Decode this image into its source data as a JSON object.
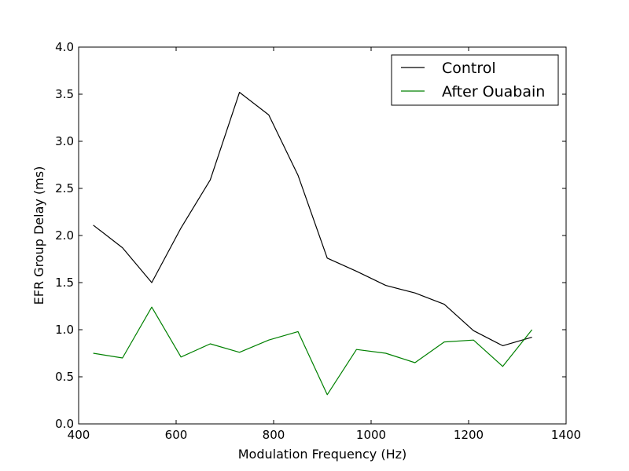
{
  "chart_data": {
    "type": "line",
    "title": "",
    "xlabel": "Modulation Frequency (Hz)",
    "ylabel": "EFR Group Delay (ms)",
    "xlim": [
      400,
      1400
    ],
    "ylim": [
      0.0,
      4.0
    ],
    "x_ticks": [
      400,
      600,
      800,
      1000,
      1200,
      1400
    ],
    "x_tick_labels": [
      "400",
      "600",
      "800",
      "1000",
      "1200",
      "1400"
    ],
    "y_ticks": [
      0.0,
      0.5,
      1.0,
      1.5,
      2.0,
      2.5,
      3.0,
      3.5,
      4.0
    ],
    "y_tick_labels": [
      "0.0",
      "0.5",
      "1.0",
      "1.5",
      "2.0",
      "2.5",
      "3.0",
      "3.5",
      "4.0"
    ],
    "grid": false,
    "legend_position": "top-right",
    "x": [
      430,
      490,
      550,
      610,
      670,
      730,
      790,
      850,
      910,
      970,
      1030,
      1090,
      1150,
      1210,
      1270,
      1330
    ],
    "series": [
      {
        "name": "Control",
        "color": "#000000",
        "values": [
          2.11,
          1.87,
          1.5,
          2.08,
          2.59,
          3.52,
          3.28,
          2.64,
          1.76,
          1.62,
          1.47,
          1.39,
          1.27,
          0.99,
          0.83,
          0.92
        ]
      },
      {
        "name": "After Ouabain",
        "color": "#008000",
        "values": [
          0.75,
          0.7,
          1.24,
          0.71,
          0.85,
          0.76,
          0.89,
          0.98,
          0.31,
          0.79,
          0.75,
          0.65,
          0.87,
          0.89,
          0.61,
          1.0
        ]
      }
    ]
  }
}
